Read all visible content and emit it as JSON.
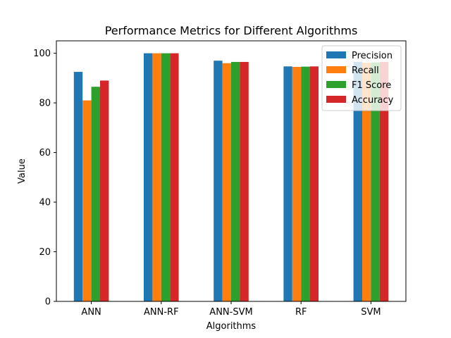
{
  "chart_data": {
    "type": "bar",
    "title": "Performance Metrics for Different Algorithms",
    "xlabel": "Algorithms",
    "ylabel": "Value",
    "categories": [
      "ANN",
      "ANN-RF",
      "ANN-SVM",
      "RF",
      "SVM"
    ],
    "ylim": [
      0,
      105
    ],
    "yticks": [
      "0",
      "20",
      "40",
      "60",
      "80",
      "100"
    ],
    "grid": false,
    "legend_position": "top-right",
    "series": [
      {
        "name": "Precision",
        "color": "#1f77b4",
        "values": [
          92.5,
          100,
          97,
          94.7,
          96.5
        ]
      },
      {
        "name": "Recall",
        "color": "#ff7f0e",
        "values": [
          81,
          100,
          96,
          94.5,
          96.2
        ]
      },
      {
        "name": "F1 Score",
        "color": "#2ca02c",
        "values": [
          86.5,
          100,
          96.5,
          94.6,
          96.3
        ]
      },
      {
        "name": "Accuracy",
        "color": "#d62728",
        "values": [
          89,
          100,
          96.5,
          94.7,
          96.5
        ]
      }
    ]
  }
}
